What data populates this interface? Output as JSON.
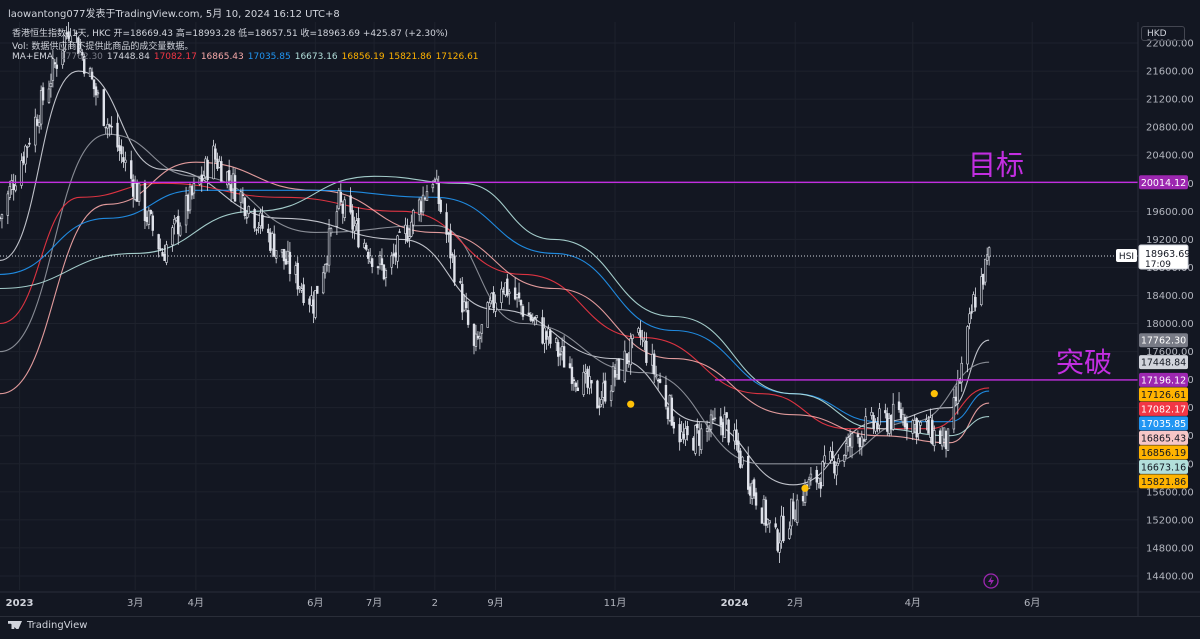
{
  "header": {
    "author_line": "laowantong077发表于TradingView.com,  5月 10, 2024 16:12 UTC+8"
  },
  "legend": {
    "symbol_line": "香港恒生指数, 1天, HKC  开=18669.43  高=18993.28  低=18657.51  收=18963.69  +425.87 (+2.30%)",
    "vol_line": "Vol: 数据供应商不提供此商品的成交量数据。",
    "ma_label": "MA+EMA",
    "ma_values": [
      {
        "text": "17762.30",
        "color": "#787b86"
      },
      {
        "text": "17448.84",
        "color": "#d1d4dc"
      },
      {
        "text": "17082.17",
        "color": "#f23645"
      },
      {
        "text": "16865.43",
        "color": "#f7a9a9"
      },
      {
        "text": "17035.85",
        "color": "#2196f3"
      },
      {
        "text": "16673.16",
        "color": "#b2dfdb"
      },
      {
        "text": "16856.19",
        "color": "#ffb300"
      },
      {
        "text": "15821.86",
        "color": "#ffb300"
      },
      {
        "text": "17126.61",
        "color": "#ffb300"
      }
    ]
  },
  "currency": "HKD",
  "footer": {
    "brand": "TradingView"
  },
  "chart_data": {
    "type": "candlestick",
    "symbol": "HSI",
    "ylim": [
      14200,
      22300
    ],
    "y_ticks": [
      14400,
      14800,
      15200,
      15600,
      16000,
      16400,
      16800,
      17200,
      17600,
      18000,
      18400,
      18800,
      19200,
      19600,
      20000,
      20400,
      20800,
      21200,
      21600,
      22000
    ],
    "y_tick_labels": [
      "14400.00",
      "14800.00",
      "15200.00",
      "15600.00",
      "16000.00",
      "16400.00",
      "16800.00",
      "17200.00",
      "17600.00",
      "18000.00",
      "18400.00",
      "18800.00",
      "19200.00",
      "19600.00",
      "20000.00",
      "20400.00",
      "20800.00",
      "21200.00",
      "21600.00",
      "22000.00"
    ],
    "x_ticks": [
      {
        "label": "2023",
        "date": "2023-01-01",
        "bold": true
      },
      {
        "label": "3月",
        "date": "2023-03-01"
      },
      {
        "label": "4月",
        "date": "2023-04-01"
      },
      {
        "label": "6月",
        "date": "2023-06-01"
      },
      {
        "label": "7月",
        "date": "2023-07-01"
      },
      {
        "label": "2",
        "date": "2023-08-01"
      },
      {
        "label": "9月",
        "date": "2023-09-01"
      },
      {
        "label": "11月",
        "date": "2023-11-01"
      },
      {
        "label": "2024",
        "date": "2024-01-01",
        "bold": true
      },
      {
        "label": "2月",
        "date": "2024-02-01"
      },
      {
        "label": "4月",
        "date": "2024-04-01"
      },
      {
        "label": "6月",
        "date": "2024-06-01"
      }
    ],
    "x_range": [
      "2022-12-22",
      "2024-07-25"
    ],
    "key_points": [
      {
        "date": "2022-12-22",
        "close": 19500
      },
      {
        "date": "2023-01-27",
        "close": 22300
      },
      {
        "date": "2023-02-10",
        "close": 21200
      },
      {
        "date": "2023-03-15",
        "close": 19000
      },
      {
        "date": "2023-04-10",
        "close": 20400
      },
      {
        "date": "2023-05-31",
        "close": 18300
      },
      {
        "date": "2023-06-13",
        "close": 19700
      },
      {
        "date": "2023-07-07",
        "close": 18700
      },
      {
        "date": "2023-07-31",
        "close": 20100
      },
      {
        "date": "2023-08-21",
        "close": 17600
      },
      {
        "date": "2023-09-04",
        "close": 18600
      },
      {
        "date": "2023-10-23",
        "close": 16900
      },
      {
        "date": "2023-11-14",
        "close": 17800
      },
      {
        "date": "2023-12-06",
        "close": 16300
      },
      {
        "date": "2023-12-27",
        "close": 16600
      },
      {
        "date": "2024-01-22",
        "close": 14900
      },
      {
        "date": "2024-02-05",
        "close": 15600
      },
      {
        "date": "2024-03-08",
        "close": 16500
      },
      {
        "date": "2024-03-26",
        "close": 16700
      },
      {
        "date": "2024-04-19",
        "close": 16300
      },
      {
        "date": "2024-04-29",
        "close": 17800
      },
      {
        "date": "2024-05-02",
        "close": 18300
      },
      {
        "date": "2024-05-06",
        "close": 18600
      },
      {
        "date": "2024-05-10",
        "close": 18963.69
      }
    ],
    "moving_averages": [
      {
        "color": "#d1d4dc",
        "points": [
          [
            "2022-12-22",
            18900
          ],
          [
            "2023-01-31",
            21600
          ],
          [
            "2023-03-15",
            20200
          ],
          [
            "2023-05-15",
            19500
          ],
          [
            "2023-07-15",
            19200
          ],
          [
            "2023-09-01",
            18200
          ],
          [
            "2023-11-01",
            17500
          ],
          [
            "2023-12-15",
            16600
          ],
          [
            "2024-01-31",
            15700
          ],
          [
            "2024-03-15",
            16600
          ],
          [
            "2024-04-20",
            16800
          ],
          [
            "2024-05-10",
            17762.3
          ]
        ]
      },
      {
        "color": "#9598a1",
        "points": [
          [
            "2022-12-22",
            17600
          ],
          [
            "2023-02-15",
            20700
          ],
          [
            "2023-04-01",
            20100
          ],
          [
            "2023-06-01",
            19300
          ],
          [
            "2023-08-01",
            19400
          ],
          [
            "2023-09-15",
            18000
          ],
          [
            "2023-11-15",
            17300
          ],
          [
            "2024-01-15",
            16000
          ],
          [
            "2024-02-15",
            16000
          ],
          [
            "2024-04-01",
            16600
          ],
          [
            "2024-05-10",
            17448.84
          ]
        ]
      },
      {
        "color": "#f23645",
        "points": [
          [
            "2022-12-22",
            18000
          ],
          [
            "2023-02-01",
            19800
          ],
          [
            "2023-03-15",
            20000
          ],
          [
            "2023-05-15",
            19800
          ],
          [
            "2023-07-15",
            19600
          ],
          [
            "2023-09-15",
            18700
          ],
          [
            "2023-11-15",
            17800
          ],
          [
            "2024-01-15",
            17000
          ],
          [
            "2024-02-28",
            16500
          ],
          [
            "2024-04-10",
            16500
          ],
          [
            "2024-05-10",
            17082.17
          ]
        ]
      },
      {
        "color": "#f7a9a9",
        "points": [
          [
            "2022-12-22",
            17000
          ],
          [
            "2023-02-15",
            19700
          ],
          [
            "2023-04-01",
            20300
          ],
          [
            "2023-06-01",
            19900
          ],
          [
            "2023-08-01",
            19300
          ],
          [
            "2023-10-01",
            18500
          ],
          [
            "2023-12-01",
            17500
          ],
          [
            "2024-01-31",
            16700
          ],
          [
            "2024-03-15",
            16400
          ],
          [
            "2024-04-20",
            16300
          ],
          [
            "2024-05-10",
            16865.43
          ]
        ]
      },
      {
        "color": "#2196f3",
        "points": [
          [
            "2022-12-22",
            18700
          ],
          [
            "2023-02-15",
            19500
          ],
          [
            "2023-04-01",
            19900
          ],
          [
            "2023-06-01",
            19900
          ],
          [
            "2023-08-01",
            19800
          ],
          [
            "2023-10-01",
            19000
          ],
          [
            "2023-12-01",
            17900
          ],
          [
            "2024-01-31",
            17000
          ],
          [
            "2024-03-15",
            16600
          ],
          [
            "2024-04-20",
            16600
          ],
          [
            "2024-05-10",
            17035.85
          ]
        ]
      },
      {
        "color": "#b2dfdb",
        "points": [
          [
            "2022-12-22",
            18500
          ],
          [
            "2023-03-01",
            19000
          ],
          [
            "2023-05-01",
            19600
          ],
          [
            "2023-07-01",
            20100
          ],
          [
            "2023-08-15",
            20000
          ],
          [
            "2023-10-01",
            19200
          ],
          [
            "2023-12-01",
            18100
          ],
          [
            "2024-01-31",
            17000
          ],
          [
            "2024-03-15",
            16500
          ],
          [
            "2024-04-20",
            16400
          ],
          [
            "2024-05-10",
            16673.16
          ]
        ]
      }
    ],
    "signal_markers": [
      {
        "date": "2023-11-09",
        "price": 16850
      },
      {
        "date": "2024-02-06",
        "price": 15650
      },
      {
        "date": "2024-04-12",
        "price": 17000
      }
    ],
    "horizontal_lines": [
      {
        "price": 20014.12,
        "label": "目标",
        "color": "#c22ee0"
      },
      {
        "price": 17196.12,
        "label": "突破",
        "color": "#c22ee0"
      }
    ],
    "last_price": {
      "price": 18963.69,
      "value_text": "18963.69",
      "countdown": "17:09",
      "symbol_tag": "HSI"
    },
    "price_tags": [
      {
        "price": 20014.12,
        "text": "20014.12",
        "bg": "#9c27b0",
        "fg": "#ffffff"
      },
      {
        "price": 17762.3,
        "text": "17762.30",
        "bg": "#787b86",
        "fg": "#ffffff"
      },
      {
        "price": 17448.84,
        "text": "17448.84",
        "bg": "#d1d4dc",
        "fg": "#131722"
      },
      {
        "price": 17196.12,
        "text": "17196.12",
        "bg": "#9c27b0",
        "fg": "#ffffff"
      },
      {
        "price": 17126.61,
        "text": "17126.61",
        "bg": "#ffb300",
        "fg": "#131722"
      },
      {
        "price": 17082.17,
        "text": "17082.17",
        "bg": "#f23645",
        "fg": "#ffffff"
      },
      {
        "price": 17035.85,
        "text": "17035.85",
        "bg": "#2196f3",
        "fg": "#ffffff"
      },
      {
        "price": 16865.43,
        "text": "16865.43",
        "bg": "#f7c7c7",
        "fg": "#131722"
      },
      {
        "price": 16856.19,
        "text": "16856.19",
        "bg": "#ffb300",
        "fg": "#131722"
      },
      {
        "price": 16673.16,
        "text": "16673.16",
        "bg": "#b2dfdb",
        "fg": "#131722"
      },
      {
        "price": 15821.86,
        "text": "15821.86",
        "bg": "#ffb300",
        "fg": "#131722"
      }
    ],
    "colors": {
      "background": "#131722",
      "candle": "#e0e3eb",
      "wick": "#e0e3eb",
      "grid": "#1e222d",
      "axis_text": "#b2b5be"
    }
  }
}
